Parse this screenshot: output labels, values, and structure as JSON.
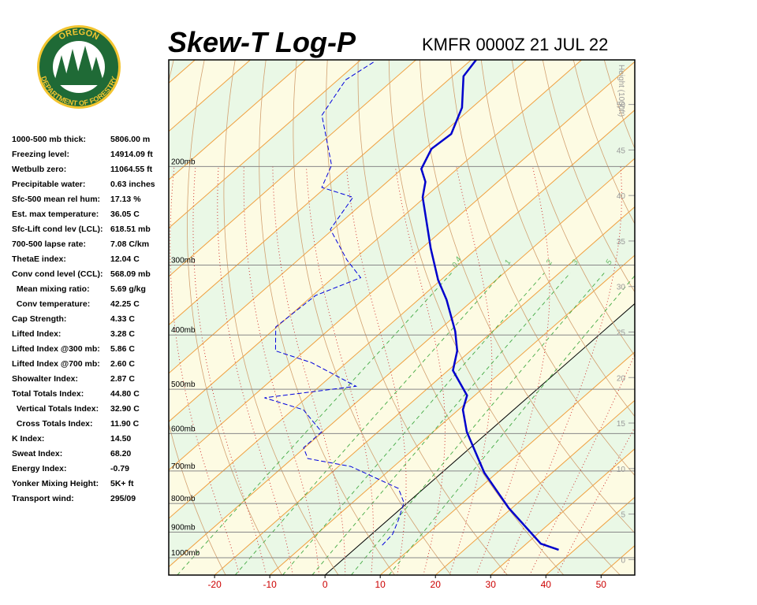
{
  "header": {
    "title": "Skew-T Log-P",
    "station": "KMFR 0000Z 21 JUL 22",
    "logo": {
      "top": "OREGON",
      "bottom": "DEPARTMENT OF FORESTRY"
    }
  },
  "indices": [
    {
      "label": "1000-500 mb thick:",
      "value": "5806.00 m"
    },
    {
      "label": "Freezing level:",
      "value": "14914.09 ft"
    },
    {
      "label": "Wetbulb zero:",
      "value": "11064.55 ft"
    },
    {
      "label": "Precipitable water:",
      "value": "0.63 inches"
    },
    {
      "label": "Sfc-500 mean rel hum:",
      "value": "17.13 %"
    },
    {
      "label": "Est. max temperature:",
      "value": "36.05 C"
    },
    {
      "label": "Sfc-Lift cond lev (LCL):",
      "value": "618.51 mb"
    },
    {
      "label": "700-500 lapse rate:",
      "value": "7.08 C/km"
    },
    {
      "label": "ThetaE index:",
      "value": "12.04 C"
    },
    {
      "label": "Conv cond level (CCL):",
      "value": "568.09 mb"
    },
    {
      "label": "  Mean mixing ratio:",
      "value": "5.69 g/kg"
    },
    {
      "label": "  Conv temperature:",
      "value": "42.25 C"
    },
    {
      "label": "Cap Strength:",
      "value": "4.33 C"
    },
    {
      "label": "Lifted Index:",
      "value": "3.28 C"
    },
    {
      "label": "Lifted Index @300 mb:",
      "value": "5.86 C"
    },
    {
      "label": "Lifted Index @700 mb:",
      "value": "2.60 C"
    },
    {
      "label": "Showalter Index:",
      "value": "2.87 C"
    },
    {
      "label": "Total Totals Index:",
      "value": "44.80 C"
    },
    {
      "label": "  Vertical Totals Index:",
      "value": "32.90 C"
    },
    {
      "label": "  Cross Totals Index:",
      "value": "11.90 C"
    },
    {
      "label": "K Index:",
      "value": "14.50"
    },
    {
      "label": "Sweat Index:",
      "value": "68.20"
    },
    {
      "label": "Energy Index:",
      "value": "-0.79"
    },
    {
      "label": "Yonker Mixing Height:",
      "value": "5K+ ft"
    },
    {
      "label": "Transport wind:",
      "value": "295/09"
    }
  ],
  "chart_data": {
    "type": "skewt",
    "xlim": [
      -28.3,
      56.1
    ],
    "xticks": [
      -20,
      -10,
      0,
      10,
      20,
      30,
      40,
      50
    ],
    "plim": [
      1074,
      129
    ],
    "pticks": [
      {
        "value": 200,
        "label": "200mb"
      },
      {
        "value": 300,
        "label": "300mb"
      },
      {
        "value": 400,
        "label": "400mb"
      },
      {
        "value": 500,
        "label": "500mb"
      },
      {
        "value": 600,
        "label": "600mb"
      },
      {
        "value": 700,
        "label": "700mb"
      },
      {
        "value": 800,
        "label": "800mb"
      },
      {
        "value": 900,
        "label": "900mb"
      },
      {
        "value": 1000,
        "label": "1000mb"
      }
    ],
    "height_label": "Height (1000ft)",
    "hlim": [
      -1.7,
      54.9
    ],
    "hticks": [
      0,
      5,
      10,
      15,
      20,
      25,
      30,
      35,
      40,
      45,
      50
    ],
    "mixing_ratios": [
      0.4,
      1,
      2,
      3,
      5,
      8
    ],
    "series": [
      {
        "color": "#0000cc",
        "pressure": [
          968,
          944,
          815,
          705,
          596,
          544,
          513,
          463,
          427,
          394,
          346,
          319,
          280,
          227,
          213,
          202,
          186,
          175,
          157,
          138,
          129
        ],
        "values": [
          37.1,
          32.6,
          19.4,
          7.7,
          -3.9,
          -9.2,
          -11.4,
          -19.1,
          -22.4,
          -26.8,
          -34.9,
          -40.5,
          -48.4,
          -60.4,
          -63.1,
          -66.5,
          -68.8,
          -68.3,
          -71.8,
          -78.0,
          -79.1
        ]
      },
      {
        "color": "#0000dd",
        "pressure": [
          950,
          908,
          856,
          797,
          752,
          687,
          665,
          636,
          596,
          544,
          518,
          494,
          448,
          427,
          387,
          340,
          316,
          294,
          259,
          227,
          218,
          199,
          162,
          140,
          130
        ],
        "values": [
          4.2,
          3.8,
          1.9,
          -0.7,
          -4.6,
          -17.8,
          -27.2,
          -30.2,
          -30.2,
          -38.1,
          -47.6,
          -33.4,
          -46.4,
          -55.3,
          -60.2,
          -59.5,
          -55.0,
          -61.1,
          -70.5,
          -73.0,
          -80.7,
          -83.5,
          -95.6,
          -98.6,
          -97.2
        ]
      }
    ]
  }
}
